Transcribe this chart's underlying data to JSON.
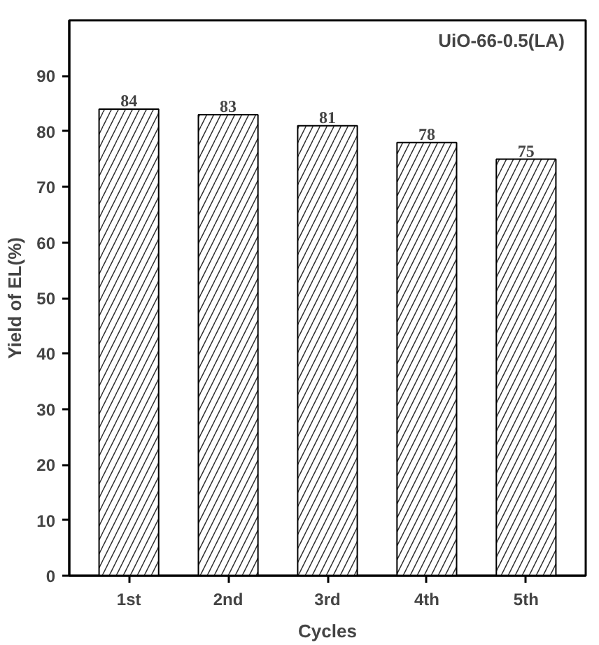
{
  "chart_data": {
    "type": "bar",
    "xlabel": "Cycles",
    "ylabel": "Yield of EL(%)",
    "categories": [
      "1st",
      "2nd",
      "3rd",
      "4th",
      "5th"
    ],
    "values": [
      84,
      83,
      81,
      78,
      75
    ],
    "color": "#ffffff",
    "ylim": [
      0,
      100
    ],
    "yticks": [
      0,
      10,
      20,
      30,
      40,
      50,
      60,
      70,
      80,
      90
    ],
    "data_labels": true,
    "grid": false,
    "annotations": [
      "UiO-66-0.5(LA)"
    ]
  }
}
